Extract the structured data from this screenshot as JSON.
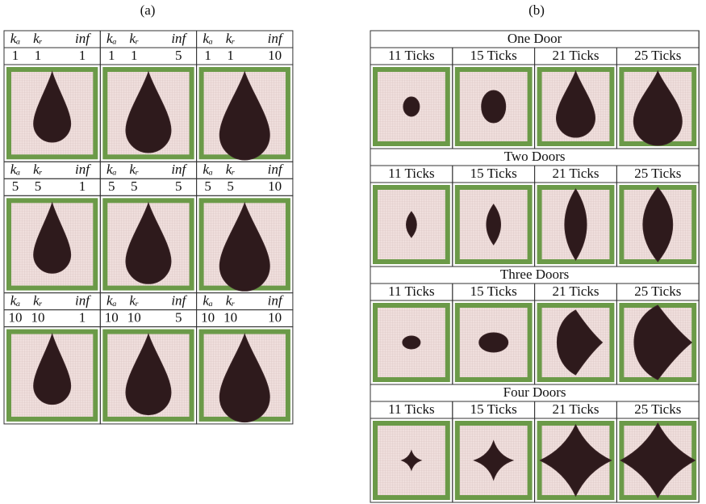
{
  "panel_a": {
    "label": "(a)",
    "cells": [
      {
        "headers": [
          "kₐ",
          "kᵣ",
          "inf"
        ],
        "values": [
          "1",
          "1",
          "1"
        ]
      },
      {
        "headers": [
          "kₐ",
          "kᵣ",
          "inf"
        ],
        "values": [
          "1",
          "1",
          "5"
        ]
      },
      {
        "headers": [
          "kₐ",
          "kᵣ",
          "inf"
        ],
        "values": [
          "1",
          "1",
          "10"
        ]
      },
      {
        "headers": [
          "kₐ",
          "kᵣ",
          "inf"
        ],
        "values": [
          "5",
          "5",
          "1"
        ]
      },
      {
        "headers": [
          "kₐ",
          "kᵣ",
          "inf"
        ],
        "values": [
          "5",
          "5",
          "5"
        ]
      },
      {
        "headers": [
          "kₐ",
          "kᵣ",
          "inf"
        ],
        "values": [
          "5",
          "5",
          "10"
        ]
      },
      {
        "headers": [
          "kₐ",
          "kᵣ",
          "inf"
        ],
        "values": [
          "10",
          "10",
          "1"
        ]
      },
      {
        "headers": [
          "kₐ",
          "kᵣ",
          "inf"
        ],
        "values": [
          "10",
          "10",
          "5"
        ]
      },
      {
        "headers": [
          "kₐ",
          "kᵣ",
          "inf"
        ],
        "values": [
          "10",
          "10",
          "10"
        ]
      }
    ]
  },
  "panel_b": {
    "label": "(b)",
    "sections": [
      {
        "title": "One Door",
        "columns": [
          "11 Ticks",
          "15 Ticks",
          "21 Ticks",
          "25 Ticks"
        ]
      },
      {
        "title": "Two Doors",
        "columns": [
          "11 Ticks",
          "15 Ticks",
          "21 Ticks",
          "25 Ticks"
        ]
      },
      {
        "title": "Three Doors",
        "columns": [
          "11 Ticks",
          "15 Ticks",
          "21 Ticks",
          "25 Ticks"
        ]
      },
      {
        "title": "Four Doors",
        "columns": [
          "11 Ticks",
          "15 Ticks",
          "21 Ticks",
          "25 Ticks"
        ]
      }
    ]
  }
}
